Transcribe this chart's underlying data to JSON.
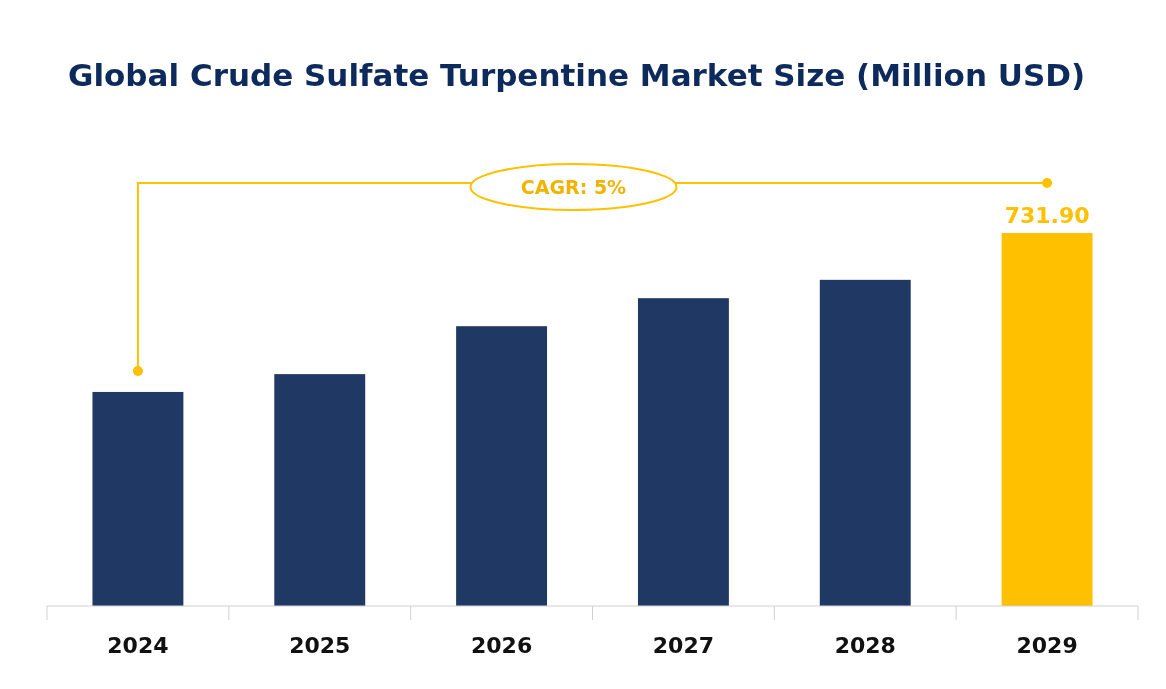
{
  "chart_data": {
    "type": "bar",
    "title": "Global Crude Sulfate Turpentine Market Size (Million USD)",
    "categories": [
      "2024",
      "2025",
      "2026",
      "2027",
      "2028",
      "2029"
    ],
    "values": [
      420,
      455,
      549,
      604,
      640,
      731.9
    ],
    "ylim": [
      0,
      731.9
    ],
    "colors": [
      "#203864",
      "#203864",
      "#203864",
      "#203864",
      "#203864",
      "#ffc000"
    ],
    "value_labels": [
      null,
      null,
      null,
      null,
      null,
      "731.90"
    ],
    "annotations": [
      "CAGR: 5%"
    ]
  }
}
